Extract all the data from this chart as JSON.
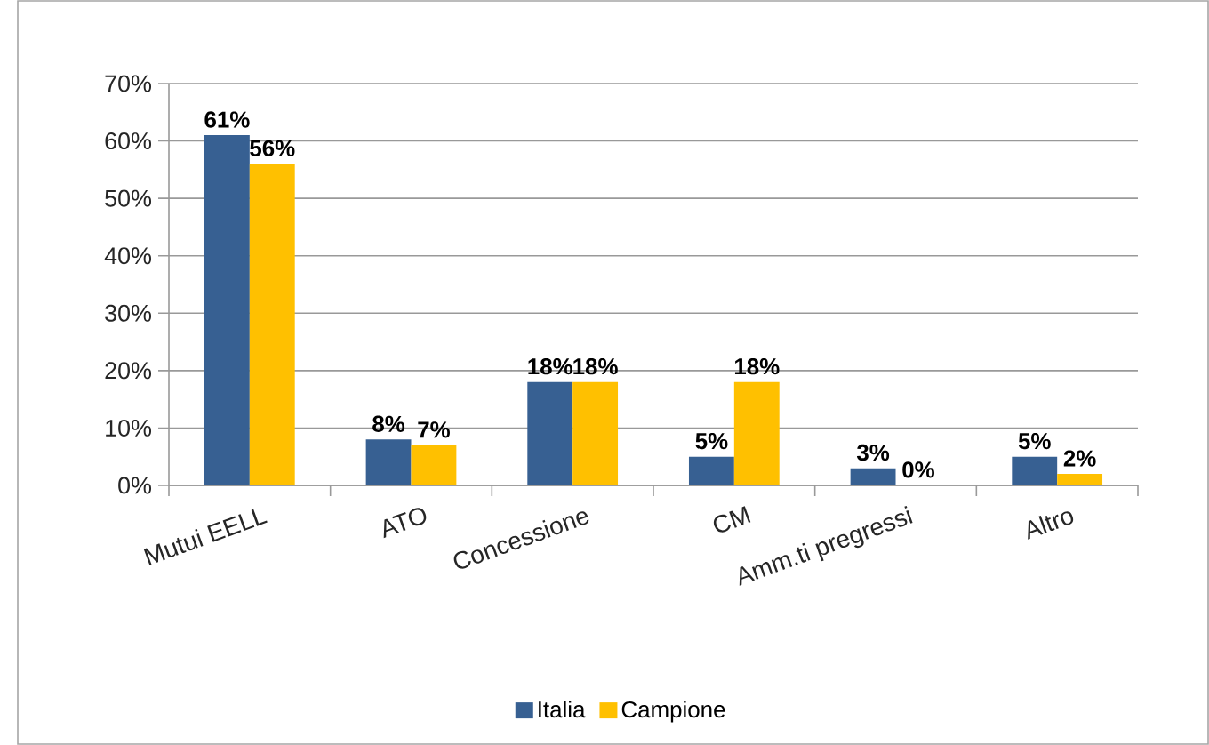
{
  "chart_data": {
    "type": "bar",
    "categories": [
      "Mutui EELL",
      "ATO",
      "Concessione",
      "CM",
      "Amm.ti pregressi",
      "Altro"
    ],
    "series": [
      {
        "name": "Italia",
        "color": "#376092",
        "values": [
          61,
          8,
          18,
          5,
          3,
          5
        ],
        "value_labels": [
          "61%",
          "8%",
          "18%",
          "5%",
          "3%",
          "5%"
        ]
      },
      {
        "name": "Campione",
        "color": "#ffc000",
        "values": [
          56,
          7,
          18,
          18,
          0,
          2
        ],
        "value_labels": [
          "56%",
          "7%",
          "18%",
          "18%",
          "0%",
          "2%"
        ]
      }
    ],
    "ylim": [
      0,
      70
    ],
    "yticks": [
      {
        "value": 0,
        "label": "0%"
      },
      {
        "value": 10,
        "label": "10%"
      },
      {
        "value": 20,
        "label": "20%"
      },
      {
        "value": 30,
        "label": "30%"
      },
      {
        "value": 40,
        "label": "40%"
      },
      {
        "value": 50,
        "label": "50%"
      },
      {
        "value": 60,
        "label": "60%"
      },
      {
        "value": 70,
        "label": "70%"
      }
    ],
    "grid": "y",
    "legend": "bottom"
  }
}
